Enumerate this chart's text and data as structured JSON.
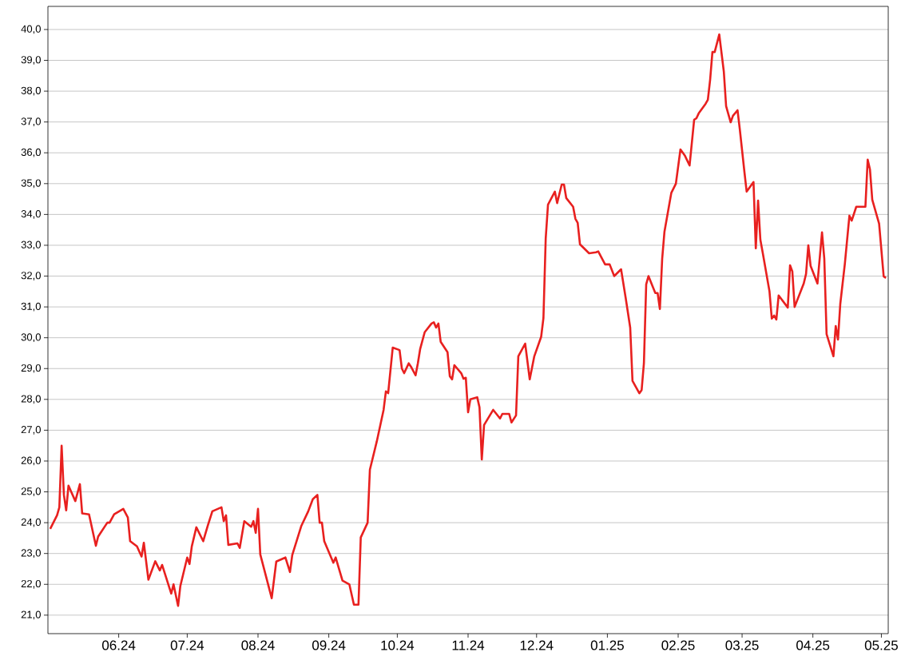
{
  "chart_data": {
    "type": "line",
    "x": [
      "2024-05-02",
      "2024-05-05",
      "2024-05-06",
      "2024-05-07",
      "2024-05-08",
      "2024-05-09",
      "2024-05-10",
      "2024-05-13",
      "2024-05-15",
      "2024-05-16",
      "2024-05-19",
      "2024-05-22",
      "2024-05-23",
      "2024-05-27",
      "2024-05-28",
      "2024-05-30",
      "2024-06-03",
      "2024-06-05",
      "2024-06-06",
      "2024-06-09",
      "2024-06-11",
      "2024-06-12",
      "2024-06-14",
      "2024-06-17",
      "2024-06-19",
      "2024-06-20",
      "2024-06-24",
      "2024-06-25",
      "2024-06-27",
      "2024-06-28",
      "2024-07-01",
      "2024-07-02",
      "2024-07-03",
      "2024-07-05",
      "2024-07-08",
      "2024-07-10",
      "2024-07-12",
      "2024-07-16",
      "2024-07-17",
      "2024-07-18",
      "2024-07-19",
      "2024-07-23",
      "2024-07-24",
      "2024-07-26",
      "2024-07-29",
      "2024-07-30",
      "2024-07-31",
      "2024-08-01",
      "2024-08-02",
      "2024-08-07",
      "2024-08-09",
      "2024-08-13",
      "2024-08-15",
      "2024-08-16",
      "2024-08-20",
      "2024-08-23",
      "2024-08-25",
      "2024-08-27",
      "2024-08-28",
      "2024-08-29",
      "2024-08-30",
      "2024-09-03",
      "2024-09-04",
      "2024-09-07",
      "2024-09-10",
      "2024-09-12",
      "2024-09-14",
      "2024-09-15",
      "2024-09-18",
      "2024-09-19",
      "2024-09-22",
      "2024-09-25",
      "2024-09-26",
      "2024-09-27",
      "2024-09-29",
      "2024-10-02",
      "2024-10-03",
      "2024-10-04",
      "2024-10-06",
      "2024-10-07",
      "2024-10-09",
      "2024-10-10",
      "2024-10-11",
      "2024-10-13",
      "2024-10-16",
      "2024-10-17",
      "2024-10-18",
      "2024-10-19",
      "2024-10-20",
      "2024-10-23",
      "2024-10-24",
      "2024-10-25",
      "2024-10-26",
      "2024-10-29",
      "2024-10-30",
      "2024-10-31",
      "2024-11-01",
      "2024-11-02",
      "2024-11-05",
      "2024-11-06",
      "2024-11-07",
      "2024-11-08",
      "2024-11-12",
      "2024-11-15",
      "2024-11-16",
      "2024-11-19",
      "2024-11-20",
      "2024-11-22",
      "2024-11-23",
      "2024-11-26",
      "2024-11-28",
      "2024-11-30",
      "2024-12-03",
      "2024-12-04",
      "2024-12-05",
      "2024-12-06",
      "2024-12-09",
      "2024-12-10",
      "2024-12-12",
      "2024-12-13",
      "2024-12-14",
      "2024-12-17",
      "2024-12-18",
      "2024-12-19",
      "2024-12-20",
      "2024-12-24",
      "2024-12-27",
      "2024-12-28",
      "2024-12-31",
      "2025-01-02",
      "2025-01-04",
      "2025-01-07",
      "2025-01-09",
      "2025-01-11",
      "2025-01-12",
      "2025-01-15",
      "2025-01-16",
      "2025-01-17",
      "2025-01-18",
      "2025-01-19",
      "2025-01-21",
      "2025-01-22",
      "2025-01-23",
      "2025-01-24",
      "2025-01-25",
      "2025-01-26",
      "2025-01-29",
      "2025-01-31",
      "2025-02-02",
      "2025-02-04",
      "2025-02-06",
      "2025-02-08",
      "2025-02-09",
      "2025-02-10",
      "2025-02-13",
      "2025-02-14",
      "2025-02-15",
      "2025-02-16",
      "2025-02-17",
      "2025-02-19",
      "2025-02-21",
      "2025-02-22",
      "2025-02-24",
      "2025-02-25",
      "2025-02-27",
      "2025-02-28",
      "2025-03-02",
      "2025-03-03",
      "2025-03-05",
      "2025-03-06",
      "2025-03-07",
      "2025-03-08",
      "2025-03-09",
      "2025-03-10",
      "2025-03-13",
      "2025-03-14",
      "2025-03-15",
      "2025-03-16",
      "2025-03-17",
      "2025-03-21",
      "2025-03-22",
      "2025-03-23",
      "2025-03-24",
      "2025-03-28",
      "2025-03-29",
      "2025-03-30",
      "2025-03-31",
      "2025-04-03",
      "2025-04-05",
      "2025-04-06",
      "2025-04-07",
      "2025-04-10",
      "2025-04-11",
      "2025-04-12",
      "2025-04-13",
      "2025-04-15",
      "2025-04-17",
      "2025-04-18",
      "2025-04-20",
      "2025-04-22",
      "2025-04-24",
      "2025-04-25",
      "2025-04-26",
      "2025-04-27",
      "2025-04-30",
      "2025-05-02",
      "2025-05-03"
    ],
    "series": [
      {
        "color": "#e8201f",
        "values": [
          23.8,
          24.24,
          24.5,
          26.5,
          24.9,
          24.4,
          25.2,
          24.7,
          25.25,
          24.3,
          24.27,
          23.25,
          23.55,
          24.0,
          24.0,
          24.27,
          24.45,
          24.17,
          23.4,
          23.23,
          22.9,
          23.35,
          22.15,
          22.75,
          22.45,
          22.63,
          21.7,
          22.0,
          21.3,
          21.95,
          22.87,
          22.66,
          23.23,
          23.85,
          23.4,
          23.9,
          24.37,
          24.5,
          24.05,
          24.24,
          23.28,
          23.33,
          23.18,
          24.05,
          23.87,
          24.05,
          23.67,
          24.45,
          22.97,
          21.55,
          22.74,
          22.87,
          22.4,
          22.95,
          23.9,
          24.37,
          24.76,
          24.9,
          24.0,
          24.0,
          23.4,
          22.7,
          22.87,
          22.12,
          22.0,
          21.34,
          21.34,
          23.52,
          24.0,
          25.72,
          26.63,
          27.66,
          28.26,
          28.2,
          29.68,
          29.6,
          29.0,
          28.85,
          29.17,
          29.06,
          28.78,
          29.17,
          29.63,
          30.18,
          30.46,
          30.5,
          30.33,
          30.46,
          29.87,
          29.53,
          28.75,
          28.65,
          29.11,
          28.85,
          28.67,
          28.7,
          27.58,
          28.0,
          28.07,
          27.74,
          26.05,
          27.17,
          27.66,
          27.38,
          27.53,
          27.53,
          27.25,
          27.48,
          29.4,
          29.81,
          28.65,
          29.4,
          30.03,
          30.64,
          33.23,
          34.32,
          34.74,
          34.37,
          34.97,
          34.97,
          34.53,
          34.25,
          33.86,
          33.73,
          33.03,
          32.74,
          32.77,
          32.8,
          32.38,
          32.38,
          32.0,
          32.22,
          31.3,
          30.33,
          28.6,
          28.2,
          28.3,
          29.17,
          31.73,
          32.0,
          31.63,
          31.45,
          31.45,
          30.93,
          32.56,
          33.44,
          34.7,
          35.0,
          36.11,
          35.9,
          35.59,
          37.07,
          37.12,
          37.28,
          37.59,
          37.72,
          38.37,
          39.27,
          39.27,
          39.84,
          38.63,
          37.51,
          36.99,
          37.2,
          37.38,
          36.76,
          35.39,
          34.74,
          34.95,
          35.05,
          32.9,
          34.45,
          33.18,
          32.77,
          31.5,
          30.62,
          30.72,
          30.59,
          31.37,
          30.98,
          32.35,
          32.15,
          31.0,
          31.76,
          32.07,
          33.0,
          32.33,
          31.76,
          33.42,
          32.56,
          30.12,
          29.4,
          30.38,
          29.94,
          31.1,
          32.4,
          33.96,
          33.8,
          34.25,
          34.25,
          34.25,
          35.78,
          35.46,
          34.48,
          33.7,
          31.99,
          31.94
        ]
      }
    ],
    "xlim": [
      "2024-05-01",
      "2025-05-04"
    ],
    "xticks": [
      {
        "value": "2024-06-01",
        "label": "06.24"
      },
      {
        "value": "2024-07-01",
        "label": "07.24"
      },
      {
        "value": "2024-08-01",
        "label": "08.24"
      },
      {
        "value": "2024-09-01",
        "label": "09.24"
      },
      {
        "value": "2024-10-01",
        "label": "10.24"
      },
      {
        "value": "2024-11-01",
        "label": "11.24"
      },
      {
        "value": "2024-12-01",
        "label": "12.24"
      },
      {
        "value": "2025-01-01",
        "label": "01.25"
      },
      {
        "value": "2025-02-01",
        "label": "02.25"
      },
      {
        "value": "2025-03-01",
        "label": "03.25"
      },
      {
        "value": "2025-04-01",
        "label": "04.25"
      },
      {
        "value": "2025-05-01",
        "label": "05.25"
      }
    ],
    "ylim": [
      20.4,
      40.75
    ],
    "yticks": [
      {
        "value": 21,
        "label": "21,0"
      },
      {
        "value": 22,
        "label": "22,0"
      },
      {
        "value": 23,
        "label": "23,0"
      },
      {
        "value": 24,
        "label": "24,0"
      },
      {
        "value": 25,
        "label": "25,0"
      },
      {
        "value": 26,
        "label": "26,0"
      },
      {
        "value": 27,
        "label": "27,0"
      },
      {
        "value": 28,
        "label": "28,0"
      },
      {
        "value": 29,
        "label": "29,0"
      },
      {
        "value": 30,
        "label": "30,0"
      },
      {
        "value": 31,
        "label": "31,0"
      },
      {
        "value": 32,
        "label": "32,0"
      },
      {
        "value": 33,
        "label": "33,0"
      },
      {
        "value": 34,
        "label": "34,0"
      },
      {
        "value": 35,
        "label": "35,0"
      },
      {
        "value": 36,
        "label": "36,0"
      },
      {
        "value": 37,
        "label": "37,0"
      },
      {
        "value": 38,
        "label": "38,0"
      },
      {
        "value": 39,
        "label": "39,0"
      },
      {
        "value": 40,
        "label": "40,0"
      }
    ],
    "grid": "y",
    "marker": "none",
    "line_style": "solid"
  }
}
